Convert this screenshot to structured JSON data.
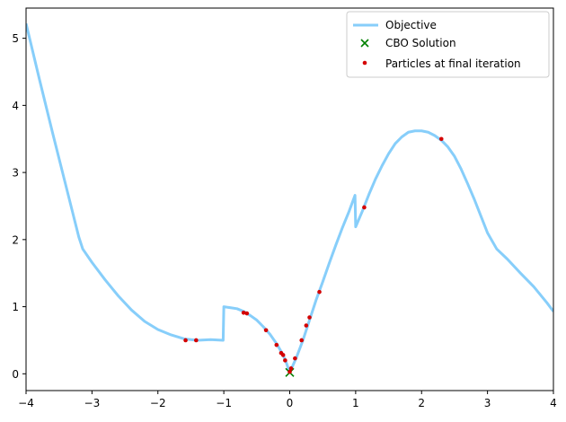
{
  "chart_data": {
    "type": "line",
    "title": "",
    "xlabel": "",
    "ylabel": "",
    "xlim": [
      -4,
      4
    ],
    "ylim": [
      -0.25,
      5.45
    ],
    "x_ticks": [
      -4,
      -3,
      -2,
      -1,
      0,
      1,
      2,
      3,
      4
    ],
    "x_tick_labels": [
      "−4",
      "−3",
      "−2",
      "−1",
      "0",
      "1",
      "2",
      "3",
      "4"
    ],
    "y_ticks": [
      0,
      1,
      2,
      3,
      4,
      5
    ],
    "y_tick_labels": [
      "0",
      "1",
      "2",
      "3",
      "4",
      "5"
    ],
    "grid": false,
    "legend_position": "top-right",
    "legend": {
      "objective": "Objective",
      "solution": "CBO Solution",
      "particles": "Particles at final iteration"
    },
    "colors": {
      "objective": "#87cefa",
      "solution": "#008000",
      "particles": "#d40000"
    },
    "objective_samples": [
      [
        -4.0,
        5.22
      ],
      [
        -3.8,
        4.4
      ],
      [
        -3.6,
        3.6
      ],
      [
        -3.4,
        2.82
      ],
      [
        -3.2,
        2.04
      ],
      [
        -3.14,
        1.86
      ],
      [
        -3.0,
        1.66
      ],
      [
        -2.8,
        1.4
      ],
      [
        -2.6,
        1.16
      ],
      [
        -2.4,
        0.95
      ],
      [
        -2.2,
        0.78
      ],
      [
        -2.0,
        0.66
      ],
      [
        -1.8,
        0.58
      ],
      [
        -1.6,
        0.52
      ],
      [
        -1.4,
        0.5
      ],
      [
        -1.2,
        0.51
      ],
      [
        -1.01,
        0.5
      ],
      [
        -1.0,
        1.0
      ],
      [
        -0.8,
        0.97
      ],
      [
        -0.7,
        0.93
      ],
      [
        -0.6,
        0.87
      ],
      [
        -0.5,
        0.8
      ],
      [
        -0.4,
        0.7
      ],
      [
        -0.3,
        0.59
      ],
      [
        -0.2,
        0.45
      ],
      [
        -0.1,
        0.28
      ],
      [
        -0.05,
        0.16
      ],
      [
        0.0,
        0.02
      ],
      [
        0.1,
        0.24
      ],
      [
        0.2,
        0.5
      ],
      [
        0.3,
        0.8
      ],
      [
        0.4,
        1.1
      ],
      [
        0.5,
        1.37
      ],
      [
        0.6,
        1.65
      ],
      [
        0.7,
        1.92
      ],
      [
        0.8,
        2.18
      ],
      [
        0.9,
        2.42
      ],
      [
        0.99,
        2.66
      ],
      [
        1.0,
        2.19
      ],
      [
        1.1,
        2.42
      ],
      [
        1.2,
        2.67
      ],
      [
        1.3,
        2.9
      ],
      [
        1.4,
        3.1
      ],
      [
        1.5,
        3.28
      ],
      [
        1.6,
        3.43
      ],
      [
        1.7,
        3.53
      ],
      [
        1.8,
        3.6
      ],
      [
        1.9,
        3.62
      ],
      [
        2.0,
        3.62
      ],
      [
        2.1,
        3.6
      ],
      [
        2.2,
        3.55
      ],
      [
        2.3,
        3.48
      ],
      [
        2.4,
        3.38
      ],
      [
        2.5,
        3.24
      ],
      [
        2.6,
        3.05
      ],
      [
        2.7,
        2.83
      ],
      [
        2.8,
        2.6
      ],
      [
        2.9,
        2.35
      ],
      [
        3.0,
        2.1
      ],
      [
        3.14,
        1.86
      ],
      [
        3.3,
        1.71
      ],
      [
        3.5,
        1.5
      ],
      [
        3.7,
        1.3
      ],
      [
        3.9,
        1.06
      ],
      [
        4.0,
        0.93
      ]
    ],
    "solution_point": [
      0.0,
      0.02
    ],
    "particles": [
      [
        -1.58,
        0.5
      ],
      [
        -1.42,
        0.5
      ],
      [
        -0.7,
        0.91
      ],
      [
        -0.65,
        0.9
      ],
      [
        -0.36,
        0.65
      ],
      [
        -0.2,
        0.43
      ],
      [
        -0.13,
        0.31
      ],
      [
        -0.1,
        0.28
      ],
      [
        -0.07,
        0.2
      ],
      [
        0.0,
        0.03
      ],
      [
        0.02,
        0.08
      ],
      [
        0.08,
        0.23
      ],
      [
        0.18,
        0.5
      ],
      [
        0.25,
        0.72
      ],
      [
        0.3,
        0.84
      ],
      [
        0.45,
        1.22
      ],
      [
        1.13,
        2.48
      ],
      [
        2.3,
        3.5
      ]
    ]
  }
}
